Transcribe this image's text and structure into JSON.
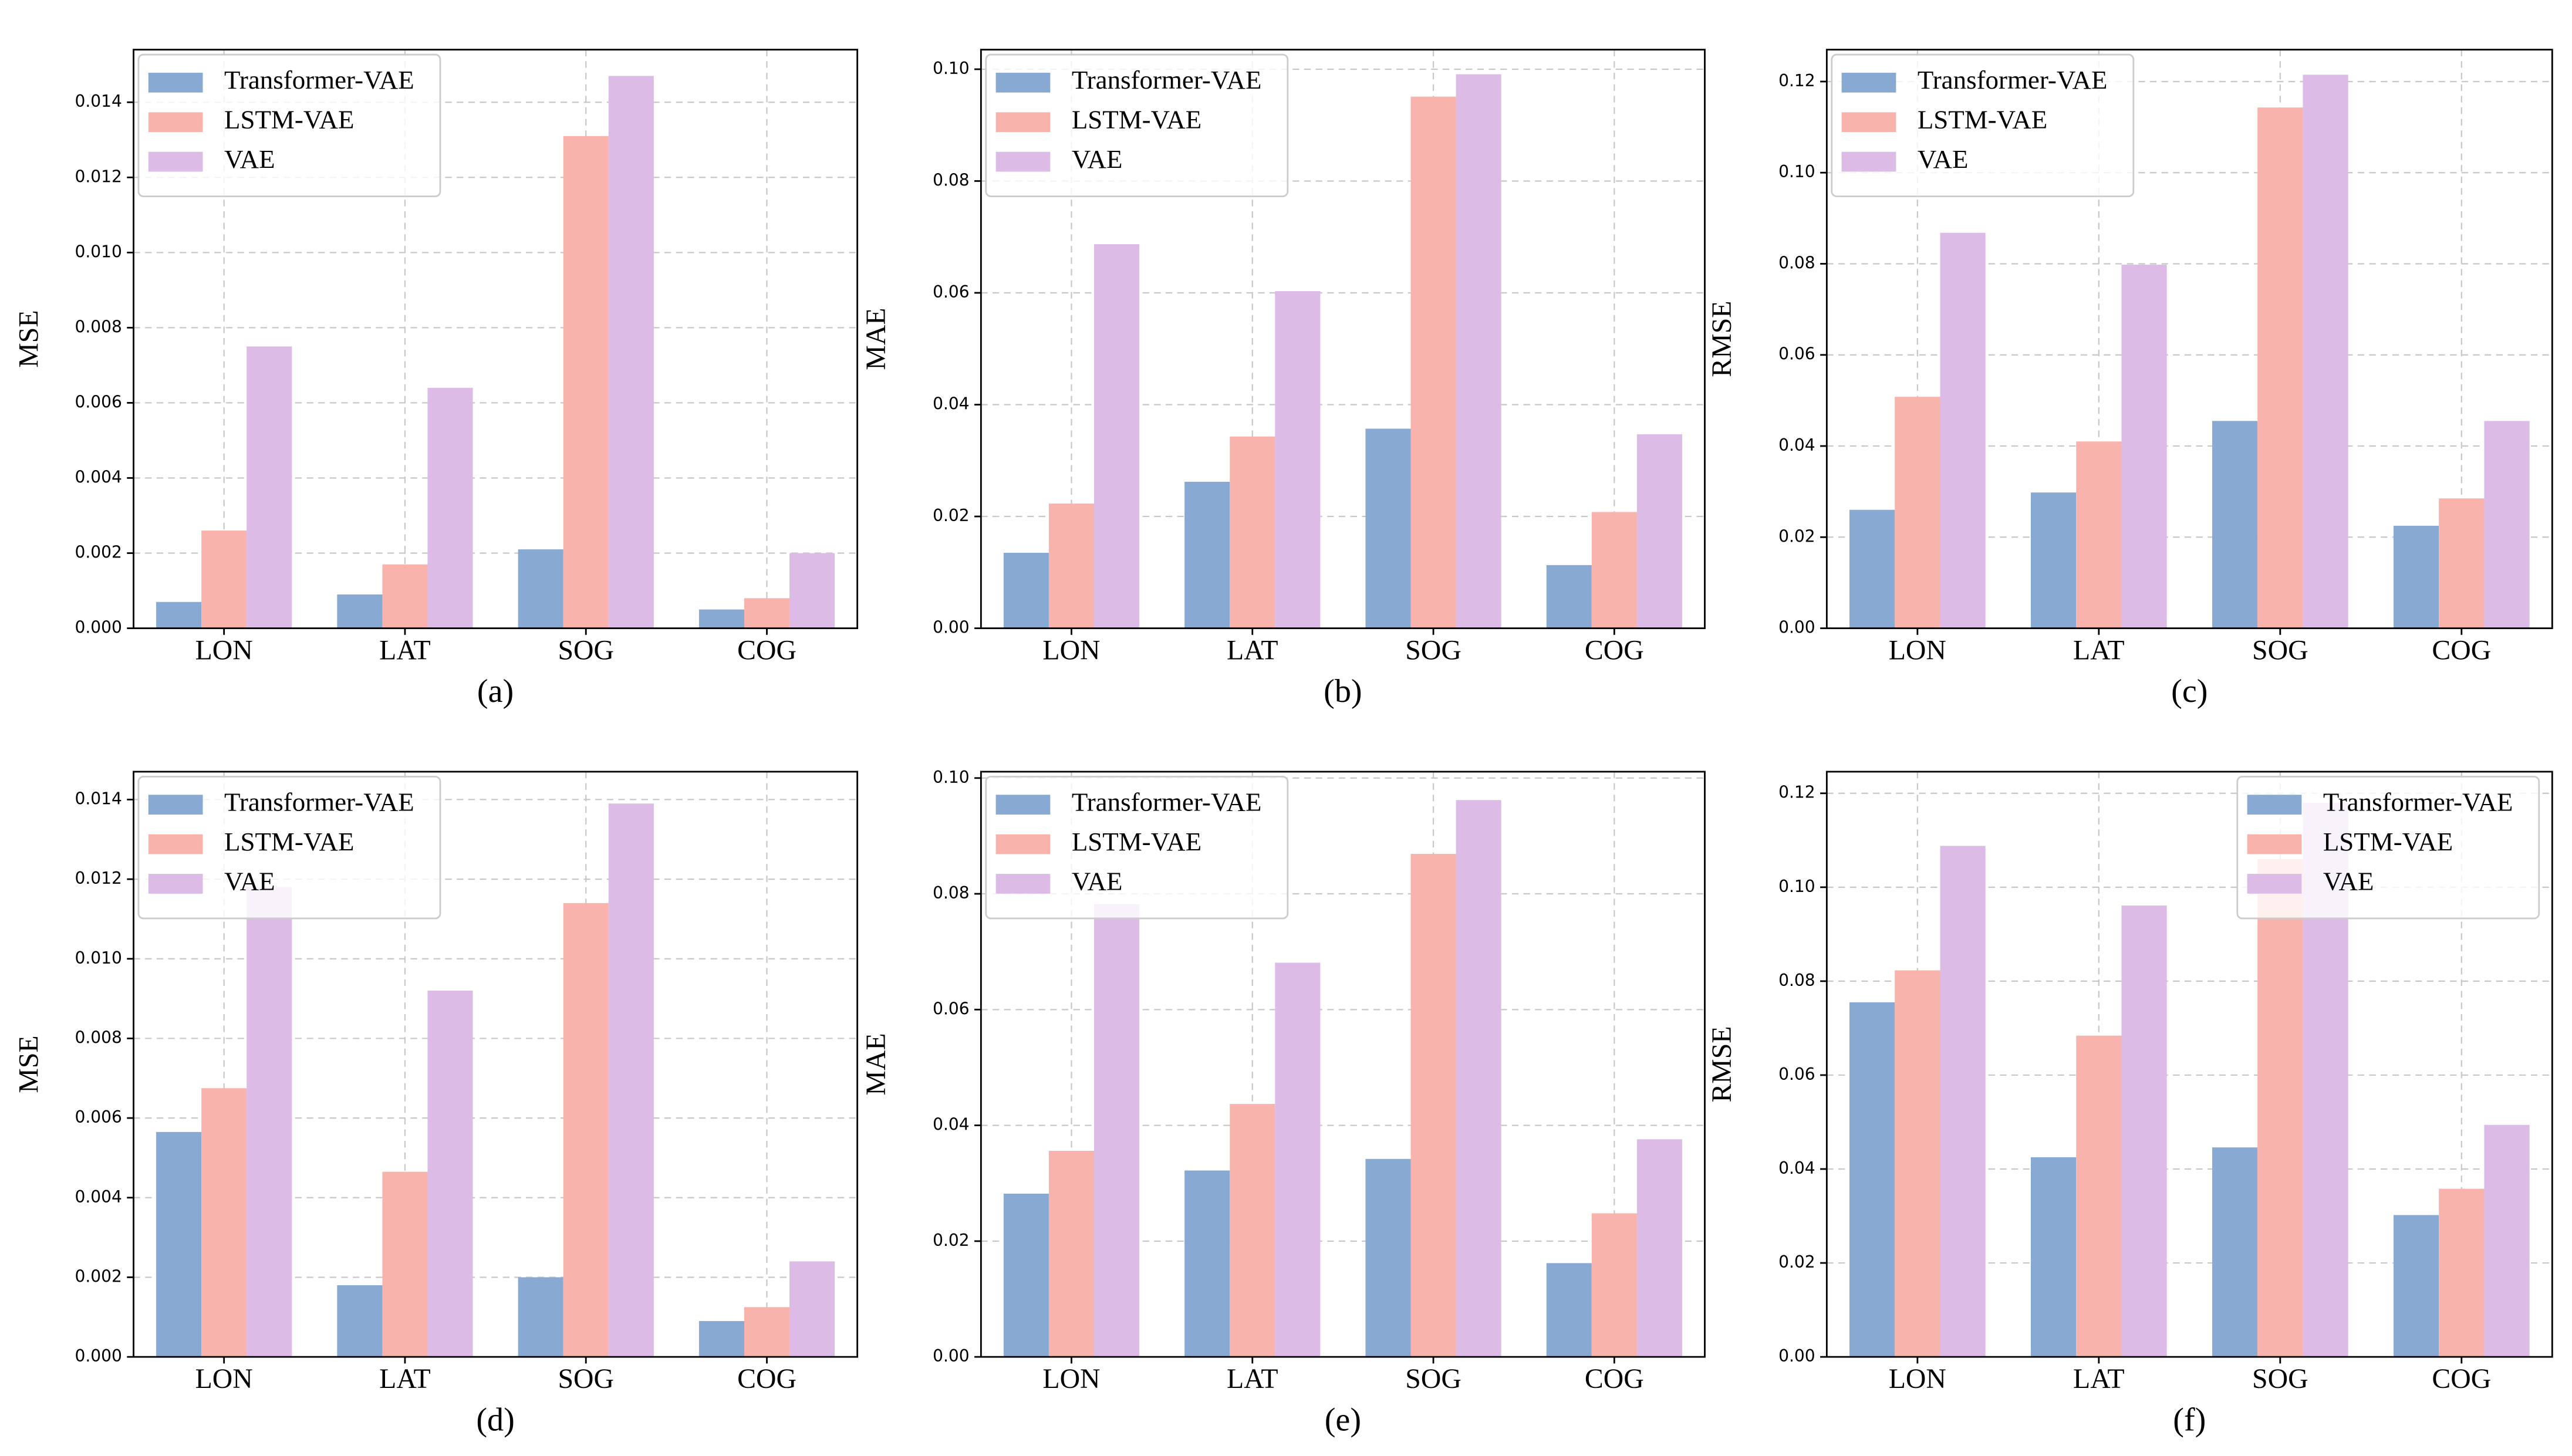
{
  "chart_data": [
    {
      "type": "bar",
      "caption": "(a)",
      "ylabel": "MSE",
      "categories": [
        "LON",
        "LAT",
        "SOG",
        "COG"
      ],
      "grid": true,
      "legend": "upper left",
      "ylim": [
        0,
        0.0154
      ],
      "yticks": [
        {
          "value": 0,
          "label": "0.000"
        },
        {
          "value": 0.002,
          "label": "0.002"
        },
        {
          "value": 0.004,
          "label": "0.004"
        },
        {
          "value": 0.006,
          "label": "0.006"
        },
        {
          "value": 0.008,
          "label": "0.008"
        },
        {
          "value": 0.01,
          "label": "0.010"
        },
        {
          "value": 0.012,
          "label": "0.012"
        },
        {
          "value": 0.014,
          "label": "0.014"
        }
      ],
      "series": [
        {
          "name": "Transformer-VAE",
          "color": "#88a9d2",
          "values": [
            0.0007,
            0.0009,
            0.0021,
            0.0005
          ]
        },
        {
          "name": "LSTM-VAE",
          "color": "#f8b3ad",
          "values": [
            0.0026,
            0.0017,
            0.0131,
            0.0008
          ]
        },
        {
          "name": "VAE",
          "color": "#dcbce6",
          "values": [
            0.0075,
            0.0064,
            0.0147,
            0.002
          ]
        }
      ]
    },
    {
      "type": "bar",
      "caption": "(b)",
      "ylabel": "MAE",
      "categories": [
        "LON",
        "LAT",
        "SOG",
        "COG"
      ],
      "grid": true,
      "legend": "upper left",
      "ylim": [
        0,
        0.1035
      ],
      "yticks": [
        {
          "value": 0,
          "label": "0.00"
        },
        {
          "value": 0.02,
          "label": "0.02"
        },
        {
          "value": 0.04,
          "label": "0.04"
        },
        {
          "value": 0.06,
          "label": "0.06"
        },
        {
          "value": 0.08,
          "label": "0.08"
        },
        {
          "value": 0.1,
          "label": "0.10"
        }
      ],
      "series": [
        {
          "name": "Transformer-VAE",
          "color": "#88a9d2",
          "values": [
            0.0135,
            0.0262,
            0.0357,
            0.0113
          ]
        },
        {
          "name": "LSTM-VAE",
          "color": "#f8b3ad",
          "values": [
            0.0223,
            0.0343,
            0.0951,
            0.0208
          ]
        },
        {
          "name": "VAE",
          "color": "#dcbce6",
          "values": [
            0.0687,
            0.0603,
            0.0991,
            0.0347
          ]
        }
      ]
    },
    {
      "type": "bar",
      "caption": "(c)",
      "ylabel": "RMSE",
      "categories": [
        "LON",
        "LAT",
        "SOG",
        "COG"
      ],
      "grid": true,
      "legend": "upper left",
      "ylim": [
        0,
        0.127
      ],
      "yticks": [
        {
          "value": 0,
          "label": "0.00"
        },
        {
          "value": 0.02,
          "label": "0.02"
        },
        {
          "value": 0.04,
          "label": "0.04"
        },
        {
          "value": 0.06,
          "label": "0.06"
        },
        {
          "value": 0.08,
          "label": "0.08"
        },
        {
          "value": 0.1,
          "label": "0.10"
        },
        {
          "value": 0.12,
          "label": "0.12"
        }
      ],
      "series": [
        {
          "name": "Transformer-VAE",
          "color": "#88a9d2",
          "values": [
            0.026,
            0.0298,
            0.0455,
            0.0225
          ]
        },
        {
          "name": "LSTM-VAE",
          "color": "#f8b3ad",
          "values": [
            0.0508,
            0.041,
            0.1143,
            0.0285
          ]
        },
        {
          "name": "VAE",
          "color": "#dcbce6",
          "values": [
            0.0868,
            0.0798,
            0.1215,
            0.0455
          ]
        }
      ]
    },
    {
      "type": "bar",
      "caption": "(d)",
      "ylabel": "MSE",
      "categories": [
        "LON",
        "LAT",
        "SOG",
        "COG"
      ],
      "grid": true,
      "legend": "upper left",
      "ylim": [
        0,
        0.0147
      ],
      "yticks": [
        {
          "value": 0,
          "label": "0.000"
        },
        {
          "value": 0.002,
          "label": "0.002"
        },
        {
          "value": 0.004,
          "label": "0.004"
        },
        {
          "value": 0.006,
          "label": "0.006"
        },
        {
          "value": 0.008,
          "label": "0.008"
        },
        {
          "value": 0.01,
          "label": "0.010"
        },
        {
          "value": 0.012,
          "label": "0.012"
        },
        {
          "value": 0.014,
          "label": "0.014"
        }
      ],
      "series": [
        {
          "name": "Transformer-VAE",
          "color": "#88a9d2",
          "values": [
            0.00565,
            0.0018,
            0.002,
            0.0009
          ]
        },
        {
          "name": "LSTM-VAE",
          "color": "#f8b3ad",
          "values": [
            0.00675,
            0.00465,
            0.0114,
            0.00125
          ]
        },
        {
          "name": "VAE",
          "color": "#dcbce6",
          "values": [
            0.0118,
            0.0092,
            0.0139,
            0.0024
          ]
        }
      ]
    },
    {
      "type": "bar",
      "caption": "(e)",
      "ylabel": "MAE",
      "categories": [
        "LON",
        "LAT",
        "SOG",
        "COG"
      ],
      "grid": true,
      "legend": "upper left",
      "ylim": [
        0,
        0.1011
      ],
      "yticks": [
        {
          "value": 0,
          "label": "0.00"
        },
        {
          "value": 0.02,
          "label": "0.02"
        },
        {
          "value": 0.04,
          "label": "0.04"
        },
        {
          "value": 0.06,
          "label": "0.06"
        },
        {
          "value": 0.08,
          "label": "0.08"
        },
        {
          "value": 0.1,
          "label": "0.10"
        }
      ],
      "series": [
        {
          "name": "Transformer-VAE",
          "color": "#88a9d2",
          "values": [
            0.0282,
            0.0322,
            0.0342,
            0.0162
          ]
        },
        {
          "name": "LSTM-VAE",
          "color": "#f8b3ad",
          "values": [
            0.0356,
            0.0437,
            0.0869,
            0.0248
          ]
        },
        {
          "name": "VAE",
          "color": "#dcbce6",
          "values": [
            0.0782,
            0.0681,
            0.0962,
            0.0376
          ]
        }
      ]
    },
    {
      "type": "bar",
      "caption": "(f)",
      "ylabel": "RMSE",
      "categories": [
        "LON",
        "LAT",
        "SOG",
        "COG"
      ],
      "grid": true,
      "legend": "upper right",
      "ylim": [
        0,
        0.1246
      ],
      "yticks": [
        {
          "value": 0,
          "label": "0.00"
        },
        {
          "value": 0.02,
          "label": "0.02"
        },
        {
          "value": 0.04,
          "label": "0.04"
        },
        {
          "value": 0.06,
          "label": "0.06"
        },
        {
          "value": 0.08,
          "label": "0.08"
        },
        {
          "value": 0.1,
          "label": "0.10"
        },
        {
          "value": 0.12,
          "label": "0.12"
        }
      ],
      "series": [
        {
          "name": "Transformer-VAE",
          "color": "#88a9d2",
          "values": [
            0.0755,
            0.0425,
            0.0446,
            0.0302
          ]
        },
        {
          "name": "LSTM-VAE",
          "color": "#f8b3ad",
          "values": [
            0.0823,
            0.0684,
            0.106,
            0.0358
          ]
        },
        {
          "name": "VAE",
          "color": "#dcbce6",
          "values": [
            0.1088,
            0.0961,
            0.118,
            0.0494
          ]
        }
      ]
    }
  ]
}
